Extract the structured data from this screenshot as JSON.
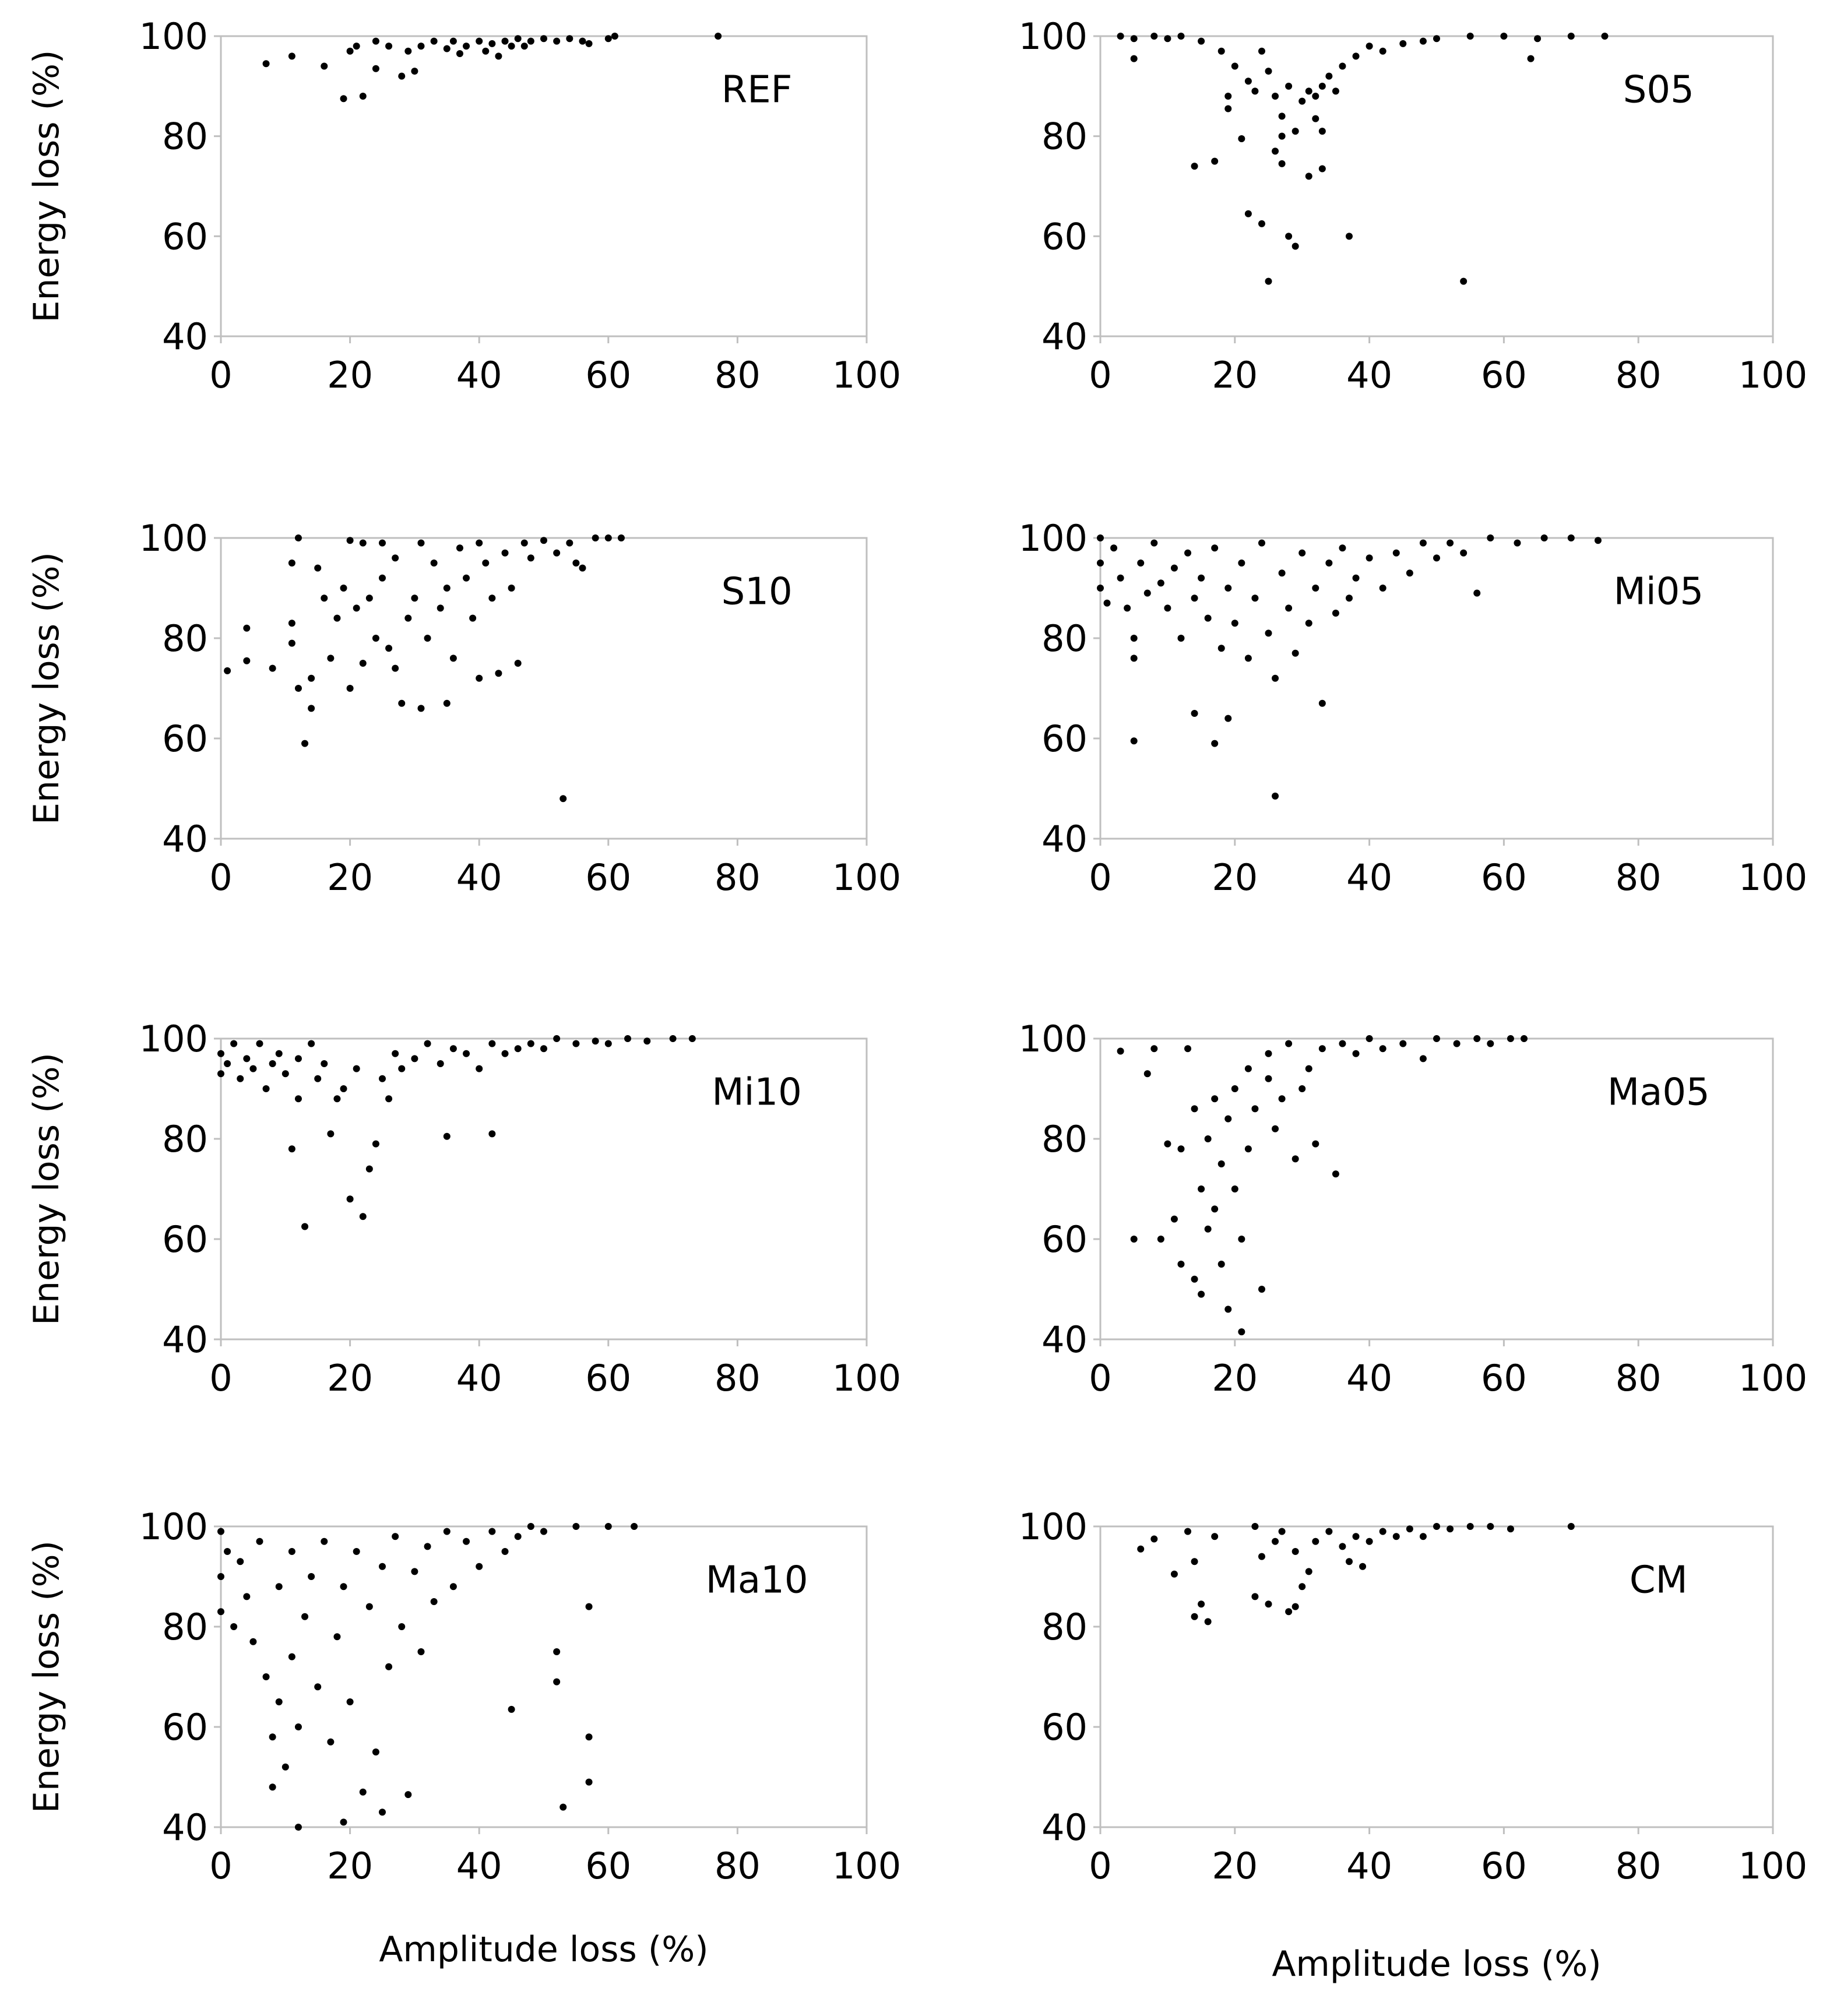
{
  "chart_data": [
    {
      "type": "scatter",
      "label": "REF",
      "ylabel": "Energy loss (%)",
      "color": "#000000",
      "xlim": [
        0,
        100
      ],
      "ylim": [
        40,
        100
      ],
      "xticks": [
        0,
        20,
        40,
        60,
        80,
        100
      ],
      "yticks": [
        40,
        60,
        80,
        100
      ],
      "x": [
        7,
        11,
        16,
        19,
        20,
        21,
        22,
        24,
        24,
        26,
        28,
        29,
        30,
        31,
        33,
        35,
        36,
        37,
        38,
        40,
        41,
        42,
        43,
        44,
        45,
        46,
        47,
        48,
        50,
        52,
        54,
        56,
        57,
        60,
        61,
        77
      ],
      "values": [
        94.5,
        96,
        94,
        87.5,
        97,
        98,
        88,
        93.5,
        99,
        98,
        92,
        97,
        93,
        98,
        99,
        97.5,
        99,
        96.5,
        98,
        99,
        97,
        98.5,
        96,
        99,
        98,
        99.5,
        98,
        99,
        99.5,
        99,
        99.5,
        99,
        98.5,
        99.5,
        100,
        100
      ]
    },
    {
      "type": "scatter",
      "label": "S05",
      "color": "#000000",
      "xlim": [
        0,
        100
      ],
      "ylim": [
        40,
        100
      ],
      "xticks": [
        0,
        20,
        40,
        60,
        80,
        100
      ],
      "yticks": [
        40,
        60,
        80,
        100
      ],
      "x": [
        3,
        5,
        5,
        8,
        10,
        12,
        15,
        18,
        19,
        20,
        21,
        22,
        23,
        24,
        25,
        26,
        27,
        27,
        28,
        30,
        31,
        32,
        33,
        34,
        35,
        36,
        38,
        40,
        42,
        45,
        48,
        50,
        55,
        60,
        65,
        70,
        75,
        64,
        14,
        17,
        22,
        24,
        27,
        28,
        29,
        31,
        33,
        33,
        37,
        25,
        54,
        26,
        29,
        19,
        32
      ],
      "values": [
        100,
        99.5,
        95.5,
        100,
        99.5,
        100,
        99,
        97,
        88,
        94,
        79.5,
        91,
        89,
        97,
        93,
        88,
        84,
        80,
        90,
        87,
        89,
        88,
        90,
        92,
        89,
        94,
        96,
        98,
        97,
        98.5,
        99,
        99.5,
        100,
        100,
        99.5,
        100,
        100,
        95.5,
        74,
        75,
        64.5,
        62.5,
        74.5,
        60,
        58,
        72,
        73.5,
        81,
        60,
        51,
        51,
        77,
        81,
        85.5,
        83.5
      ]
    },
    {
      "type": "scatter",
      "label": "S10",
      "ylabel": "Energy loss (%)",
      "color": "#000000",
      "xlim": [
        0,
        100
      ],
      "ylim": [
        40,
        100
      ],
      "xticks": [
        0,
        20,
        40,
        60,
        80,
        100
      ],
      "yticks": [
        40,
        60,
        80,
        100
      ],
      "x": [
        1,
        4,
        4,
        8,
        11,
        12,
        11,
        11,
        12,
        13,
        14,
        14,
        15,
        16,
        17,
        18,
        19,
        20,
        21,
        22,
        22,
        23,
        24,
        25,
        26,
        27,
        27,
        28,
        29,
        30,
        31,
        31,
        32,
        33,
        34,
        35,
        35,
        36,
        37,
        38,
        39,
        40,
        40,
        41,
        42,
        43,
        44,
        45,
        46,
        47,
        48,
        50,
        52,
        54,
        55,
        56,
        58,
        60,
        62,
        53,
        20,
        25
      ],
      "values": [
        73.5,
        82,
        75.5,
        74,
        95,
        100,
        83,
        79,
        70,
        59,
        72,
        66,
        94,
        88,
        76,
        84,
        90,
        70,
        86,
        75,
        99,
        88,
        80,
        92,
        78,
        96,
        74,
        67,
        84,
        88,
        99,
        66,
        80,
        95,
        86,
        67,
        90,
        76,
        98,
        92,
        84,
        72,
        99,
        95,
        88,
        73,
        97,
        90,
        75,
        99,
        96,
        99.5,
        97,
        99,
        95,
        94,
        100,
        100,
        100,
        48,
        99.5,
        99
      ]
    },
    {
      "type": "scatter",
      "label": "Mi05",
      "color": "#000000",
      "xlim": [
        0,
        100
      ],
      "ylim": [
        40,
        100
      ],
      "xticks": [
        0,
        20,
        40,
        60,
        80,
        100
      ],
      "yticks": [
        40,
        60,
        80,
        100
      ],
      "x": [
        0,
        0,
        0,
        1,
        2,
        3,
        4,
        5,
        5,
        5,
        6,
        7,
        8,
        9,
        10,
        11,
        12,
        13,
        14,
        14,
        15,
        16,
        17,
        17,
        18,
        19,
        19,
        20,
        21,
        22,
        23,
        24,
        25,
        26,
        26,
        27,
        28,
        29,
        30,
        31,
        32,
        33,
        34,
        35,
        36,
        37,
        38,
        40,
        42,
        44,
        46,
        48,
        50,
        52,
        54,
        56,
        58,
        62,
        66,
        70,
        74
      ],
      "values": [
        100,
        95,
        90,
        87,
        98,
        92,
        86,
        76,
        59.5,
        80,
        95,
        89,
        99,
        91,
        86,
        94,
        80,
        97,
        88,
        65,
        92,
        84,
        59,
        98,
        78,
        90,
        64,
        83,
        95,
        76,
        88,
        99,
        81,
        72,
        48.5,
        93,
        86,
        77,
        97,
        83,
        90,
        67,
        95,
        85,
        98,
        88,
        92,
        96,
        90,
        97,
        93,
        99,
        96,
        99,
        97,
        89,
        100,
        99,
        100,
        100,
        99.5
      ]
    },
    {
      "type": "scatter",
      "label": "Mi10",
      "ylabel": "Energy loss (%)",
      "color": "#000000",
      "xlim": [
        0,
        100
      ],
      "ylim": [
        40,
        100
      ],
      "xticks": [
        0,
        20,
        40,
        60,
        80,
        100
      ],
      "yticks": [
        40,
        60,
        80,
        100
      ],
      "x": [
        0,
        0,
        1,
        2,
        3,
        4,
        5,
        6,
        7,
        8,
        9,
        10,
        11,
        12,
        13,
        12,
        14,
        15,
        16,
        17,
        18,
        19,
        20,
        21,
        22,
        23,
        24,
        25,
        26,
        27,
        28,
        30,
        32,
        34,
        35,
        36,
        38,
        40,
        42,
        42,
        44,
        46,
        48,
        50,
        52,
        55,
        58,
        60,
        63,
        66,
        70,
        73
      ],
      "values": [
        97,
        93,
        95,
        99,
        92,
        96,
        94,
        99,
        90,
        95,
        97,
        93,
        78,
        88,
        62.5,
        96,
        99,
        92,
        95,
        81,
        88,
        90,
        68,
        94,
        64.5,
        74,
        79,
        92,
        88,
        97,
        94,
        96,
        99,
        95,
        80.5,
        98,
        97,
        94,
        81,
        99,
        97,
        98,
        99,
        98,
        100,
        99,
        99.5,
        99,
        100,
        99.5,
        100,
        100
      ]
    },
    {
      "type": "scatter",
      "label": "Ma05",
      "color": "#000000",
      "xlim": [
        0,
        100
      ],
      "ylim": [
        40,
        100
      ],
      "xticks": [
        0,
        20,
        40,
        60,
        80,
        100
      ],
      "yticks": [
        40,
        60,
        80,
        100
      ],
      "x": [
        3,
        5,
        7,
        8,
        9,
        10,
        11,
        12,
        12,
        13,
        14,
        14,
        15,
        15,
        16,
        16,
        17,
        17,
        18,
        18,
        19,
        19,
        20,
        20,
        21,
        21,
        22,
        22,
        23,
        24,
        25,
        25,
        26,
        27,
        28,
        29,
        30,
        31,
        32,
        33,
        35,
        36,
        38,
        40,
        42,
        45,
        48,
        50,
        53,
        56,
        58,
        61,
        63
      ],
      "values": [
        97.5,
        60,
        93,
        98,
        60,
        79,
        64,
        55,
        78,
        98,
        86,
        52,
        70,
        49,
        80,
        62,
        88,
        66,
        75,
        55,
        84,
        46,
        70,
        90,
        41.5,
        60,
        78,
        94,
        86,
        50,
        92,
        97,
        82,
        88,
        99,
        76,
        90,
        94,
        79,
        98,
        73,
        99,
        97,
        100,
        98,
        99,
        96,
        100,
        99,
        100,
        99,
        100,
        100
      ]
    },
    {
      "type": "scatter",
      "label": "Ma10",
      "ylabel": "Energy loss (%)",
      "xlabel": "Amplitude loss (%)",
      "color": "#000000",
      "xlim": [
        0,
        100
      ],
      "ylim": [
        40,
        100
      ],
      "xticks": [
        0,
        20,
        40,
        60,
        80,
        100
      ],
      "yticks": [
        40,
        60,
        80,
        100
      ],
      "x": [
        0,
        0,
        0,
        1,
        2,
        3,
        4,
        5,
        6,
        7,
        8,
        8,
        9,
        9,
        10,
        11,
        11,
        12,
        12,
        13,
        14,
        15,
        16,
        17,
        18,
        19,
        19,
        20,
        21,
        22,
        23,
        24,
        25,
        25,
        26,
        27,
        28,
        29,
        30,
        31,
        32,
        33,
        35,
        36,
        38,
        40,
        42,
        44,
        45,
        46,
        48,
        50,
        52,
        52,
        53,
        55,
        57,
        57,
        57,
        60,
        64
      ],
      "values": [
        99,
        90,
        83,
        95,
        80,
        93,
        86,
        77,
        97,
        70,
        58,
        48,
        65,
        88,
        52,
        74,
        95,
        40,
        60,
        82,
        90,
        68,
        97,
        57,
        78,
        41,
        88,
        65,
        95,
        47,
        84,
        55,
        43,
        92,
        72,
        98,
        80,
        46.5,
        91,
        75,
        96,
        85,
        99,
        88,
        97,
        92,
        99,
        95,
        63.5,
        98,
        100,
        99,
        75,
        69,
        44,
        100,
        58,
        49,
        84,
        100,
        100
      ]
    },
    {
      "type": "scatter",
      "label": "CM",
      "xlabel": "Amplitude loss (%)",
      "color": "#000000",
      "xlim": [
        0,
        100
      ],
      "ylim": [
        40,
        100
      ],
      "xticks": [
        0,
        20,
        40,
        60,
        80,
        100
      ],
      "yticks": [
        40,
        60,
        80,
        100
      ],
      "x": [
        6,
        8,
        11,
        13,
        14,
        14,
        15,
        16,
        17,
        23,
        23,
        24,
        25,
        26,
        27,
        28,
        29,
        29,
        30,
        31,
        32,
        34,
        36,
        37,
        38,
        39,
        40,
        42,
        44,
        46,
        48,
        50,
        52,
        55,
        58,
        61,
        70
      ],
      "values": [
        95.5,
        97.5,
        90.5,
        99,
        82,
        93,
        84.5,
        81,
        98,
        100,
        86,
        94,
        84.5,
        97,
        99,
        83,
        95,
        84,
        88,
        91,
        97,
        99,
        96,
        93,
        98,
        92,
        97,
        99,
        98,
        99.5,
        98,
        100,
        99.5,
        100,
        100,
        99.5,
        100
      ]
    }
  ]
}
